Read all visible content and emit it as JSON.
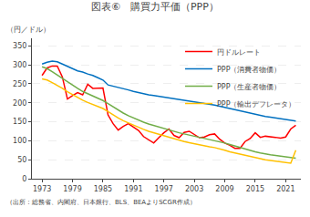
{
  "chart_data": {
    "type": "line",
    "title": "図表⑥　購買力平価（PPP）",
    "ylabel": "（円／ドル）",
    "annotations": [
      "（出所：総務省、内閣府、日本銀行、BLS、BEAよりSCGR作成）"
    ],
    "x": [
      1973,
      1974,
      1975,
      1976,
      1977,
      1978,
      1979,
      1980,
      1981,
      1982,
      1983,
      1984,
      1985,
      1986,
      1987,
      1988,
      1989,
      1990,
      1991,
      1992,
      1993,
      1994,
      1995,
      1996,
      1997,
      1998,
      1999,
      2000,
      2001,
      2002,
      2003,
      2004,
      2005,
      2006,
      2007,
      2008,
      2009,
      2010,
      2011,
      2012,
      2013,
      2014,
      2015,
      2016,
      2017,
      2018,
      2019,
      2020,
      2021,
      2022,
      2023
    ],
    "series": [
      {
        "name": "円ドルレート",
        "color": "#ff0000",
        "values": [
          272,
          292,
          297,
          297,
          268,
          210,
          219,
          227,
          221,
          249,
          238,
          238,
          239,
          168,
          145,
          128,
          138,
          145,
          135,
          127,
          111,
          102,
          94,
          108,
          121,
          131,
          114,
          108,
          122,
          125,
          116,
          108,
          110,
          116,
          118,
          104,
          94,
          88,
          80,
          80,
          98,
          106,
          121,
          109,
          112,
          111,
          109,
          107,
          110,
          131,
          141
        ]
      },
      {
        "name": "PPP（消費者物価）",
        "color": "#0070c0",
        "values": [
          302,
          307,
          310,
          308,
          302,
          295,
          290,
          284,
          281,
          276,
          272,
          266,
          260,
          247,
          244,
          240,
          237,
          234,
          230,
          227,
          223,
          221,
          219,
          217,
          215,
          213,
          210,
          208,
          206,
          204,
          202,
          200,
          198,
          196,
          194,
          191,
          188,
          184,
          181,
          178,
          175,
          172,
          170,
          167,
          164,
          162,
          160,
          158,
          156,
          154,
          152
        ]
      },
      {
        "name": "PPP（生産者物価）",
        "color": "#70ad47",
        "values": [
          295,
          290,
          282,
          273,
          263,
          254,
          247,
          238,
          230,
          224,
          218,
          212,
          206,
          198,
          189,
          181,
          173,
          166,
          160,
          154,
          149,
          144,
          140,
          136,
          132,
          129,
          125,
          121,
          118,
          115,
          112,
          109,
          107,
          104,
          101,
          98,
          94,
          90,
          86,
          82,
          78,
          74,
          71,
          68,
          65,
          63,
          61,
          59,
          57,
          55,
          54
        ]
      },
      {
        "name": "PPP（輸出デフレータ）",
        "color": "#ffc000",
        "values": [
          263,
          260,
          253,
          246,
          238,
          229,
          221,
          213,
          207,
          201,
          196,
          190,
          185,
          177,
          168,
          160,
          153,
          147,
          141,
          135,
          130,
          125,
          121,
          117,
          113,
          109,
          105,
          101,
          98,
          95,
          92,
          89,
          87,
          84,
          82,
          79,
          75,
          71,
          68,
          64,
          61,
          58,
          55,
          52,
          50,
          48,
          46,
          44,
          43,
          41,
          75
        ]
      }
    ],
    "xlim": [
      1971,
      2024
    ],
    "xticks": [
      1973,
      1979,
      1985,
      1991,
      1997,
      2003,
      2009,
      2015,
      2021
    ],
    "ylim": [
      0,
      370
    ],
    "yticks": [
      0,
      50,
      100,
      150,
      200,
      250,
      300,
      350
    ],
    "grid": true,
    "legend": "upper right"
  }
}
